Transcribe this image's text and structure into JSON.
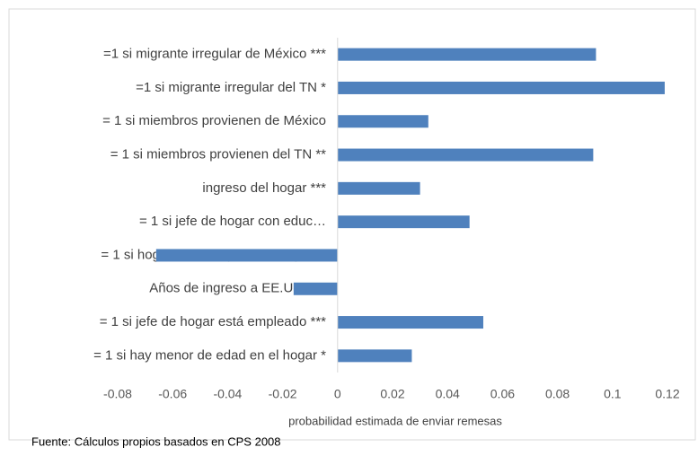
{
  "chart_data": {
    "type": "barh",
    "categories": [
      "=1 si migrante irregular de  México ***",
      "=1 si migrante irregular del TN *",
      "= 1 si miembros provienen de México",
      "= 1 si miembros provienen del TN **",
      "ingreso del hogar ***",
      "= 1 si jefe de hogar con educ…",
      "= 1 si hogar liderado por una mujer***",
      "Años de ingreso a EE.UU.  ***",
      "= 1 si jefe de hogar está empleado ***",
      "= 1 si hay menor de edad en el hogar *"
    ],
    "values": [
      0.094,
      0.119,
      0.033,
      0.093,
      0.03,
      0.048,
      -0.066,
      -0.016,
      0.053,
      0.027
    ],
    "color": "#4f81bd",
    "xlim": [
      -0.08,
      0.12
    ],
    "xticks": [
      -0.08,
      -0.06,
      -0.04,
      -0.02,
      0,
      0.02,
      0.04,
      0.06,
      0.08,
      0.1,
      0.12
    ],
    "xlabel": "probabilidad estimada de enviar remesas",
    "source": "Fuente: Cálculos propios basados en CPS 2008",
    "grid": false
  }
}
